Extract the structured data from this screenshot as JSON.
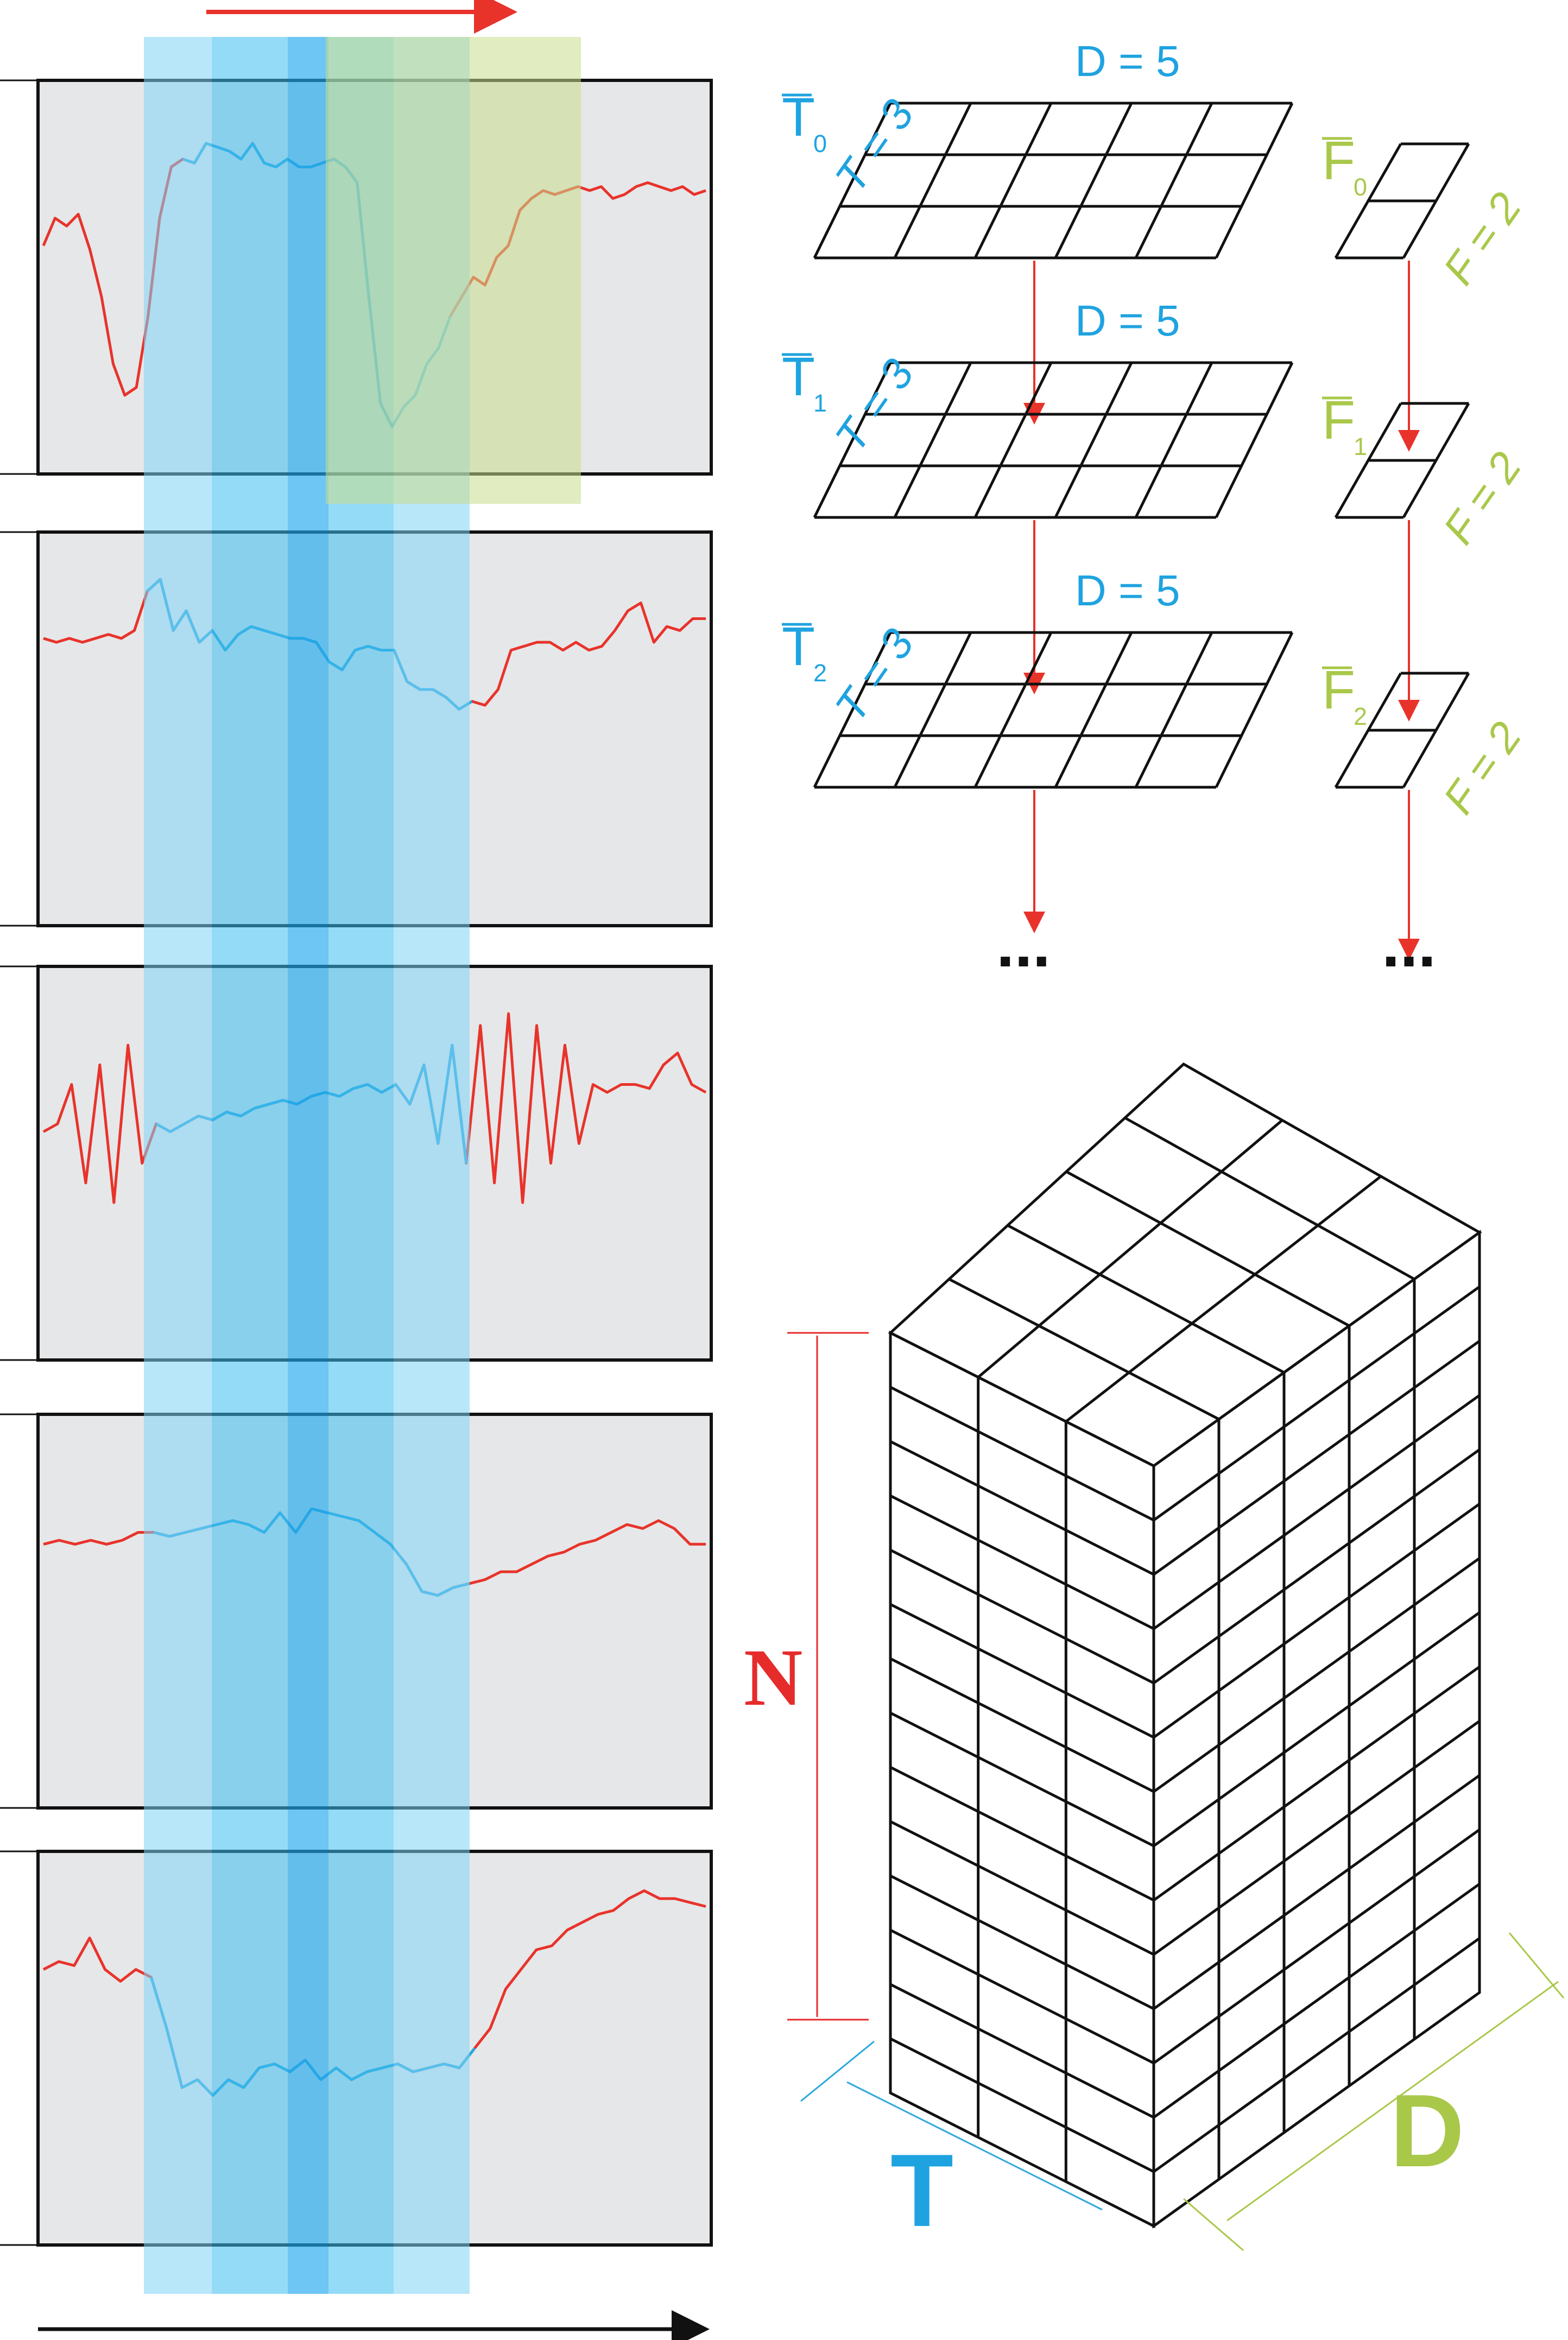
{
  "colors": {
    "signal_outside": "#e8332b",
    "signal_inside": "#29a8df",
    "panel_bg": "#e6e7e8",
    "band_light": "#7fd3f5",
    "band_mid": "#3cbdf0",
    "band_dark": "#1fa7ec",
    "band_green": "#c8dc8c",
    "label_blue": "#1fa3e0",
    "label_green": "#a9c84a",
    "label_red": "#e62b2b",
    "black": "#111111"
  },
  "panels": [
    {
      "signal": [
        0.42,
        0.35,
        0.37,
        0.34,
        0.43,
        0.55,
        0.72,
        0.8,
        0.78,
        0.6,
        0.35,
        0.22,
        0.2,
        0.21,
        0.16,
        0.17,
        0.18,
        0.2,
        0.16,
        0.21,
        0.22,
        0.2,
        0.22,
        0.22,
        0.21,
        0.2,
        0.22,
        0.26,
        0.55,
        0.82,
        0.88,
        0.83,
        0.8,
        0.72,
        0.68,
        0.6,
        0.55,
        0.5,
        0.52,
        0.45,
        0.42,
        0.33,
        0.3,
        0.28,
        0.29,
        0.28,
        0.27,
        0.28,
        0.27,
        0.3,
        0.29,
        0.27,
        0.26,
        0.27,
        0.28,
        0.27,
        0.29,
        0.28
      ],
      "highlight": [
        0.21,
        0.62
      ]
    },
    {
      "signal": [
        0.27,
        0.28,
        0.27,
        0.28,
        0.27,
        0.26,
        0.27,
        0.25,
        0.15,
        0.12,
        0.25,
        0.2,
        0.28,
        0.25,
        0.3,
        0.26,
        0.24,
        0.25,
        0.26,
        0.27,
        0.27,
        0.28,
        0.33,
        0.35,
        0.3,
        0.29,
        0.3,
        0.3,
        0.38,
        0.4,
        0.4,
        0.42,
        0.45,
        0.43,
        0.44,
        0.4,
        0.3,
        0.29,
        0.28,
        0.28,
        0.3,
        0.28,
        0.3,
        0.29,
        0.25,
        0.2,
        0.18,
        0.28,
        0.24,
        0.25,
        0.22,
        0.22
      ],
      "highlight": [
        0.16,
        0.65
      ]
    },
    {
      "signal": [
        0.42,
        0.4,
        0.3,
        0.55,
        0.25,
        0.6,
        0.2,
        0.5,
        0.4,
        0.42,
        0.4,
        0.38,
        0.39,
        0.37,
        0.38,
        0.36,
        0.35,
        0.34,
        0.35,
        0.33,
        0.32,
        0.33,
        0.31,
        0.3,
        0.32,
        0.3,
        0.35,
        0.25,
        0.45,
        0.2,
        0.5,
        0.15,
        0.55,
        0.12,
        0.6,
        0.15,
        0.5,
        0.2,
        0.45,
        0.3,
        0.32,
        0.3,
        0.3,
        0.31,
        0.25,
        0.22,
        0.3,
        0.32
      ],
      "highlight": [
        0.16,
        0.65
      ]
    },
    {
      "signal": [
        0.33,
        0.32,
        0.33,
        0.32,
        0.33,
        0.32,
        0.3,
        0.3,
        0.31,
        0.3,
        0.29,
        0.28,
        0.27,
        0.28,
        0.3,
        0.25,
        0.3,
        0.24,
        0.25,
        0.26,
        0.27,
        0.3,
        0.33,
        0.38,
        0.45,
        0.46,
        0.44,
        0.43,
        0.42,
        0.4,
        0.4,
        0.38,
        0.36,
        0.35,
        0.33,
        0.32,
        0.3,
        0.28,
        0.29,
        0.27,
        0.29,
        0.33,
        0.33
      ],
      "highlight": [
        0.16,
        0.65
      ]
    },
    {
      "signal": [
        0.3,
        0.28,
        0.29,
        0.22,
        0.3,
        0.33,
        0.3,
        0.32,
        0.45,
        0.6,
        0.58,
        0.62,
        0.58,
        0.6,
        0.55,
        0.54,
        0.56,
        0.53,
        0.58,
        0.55,
        0.58,
        0.56,
        0.55,
        0.54,
        0.56,
        0.55,
        0.54,
        0.55,
        0.5,
        0.45,
        0.35,
        0.3,
        0.25,
        0.24,
        0.2,
        0.18,
        0.16,
        0.15,
        0.12,
        0.1,
        0.12,
        0.12,
        0.13,
        0.14
      ],
      "highlight": [
        0.16,
        0.65
      ]
    }
  ],
  "layers": [
    {
      "t_label": "T",
      "t_sub": "0",
      "d_label": "D = 5",
      "t_dim": "T = 3",
      "f_label": "F",
      "f_sub": "0",
      "f_dim": "F = 2"
    },
    {
      "t_label": "T",
      "t_sub": "1",
      "d_label": "D = 5",
      "t_dim": "T = 3",
      "f_label": "F",
      "f_sub": "1",
      "f_dim": "F = 2"
    },
    {
      "t_label": "T",
      "t_sub": "2",
      "d_label": "D = 5",
      "t_dim": "T = 3",
      "f_label": "F",
      "f_sub": "2",
      "f_dim": "F = 2"
    }
  ],
  "continuation": "...",
  "cube": {
    "n_label": "N",
    "t_label": "T",
    "d_label": "D",
    "rows": 14
  }
}
